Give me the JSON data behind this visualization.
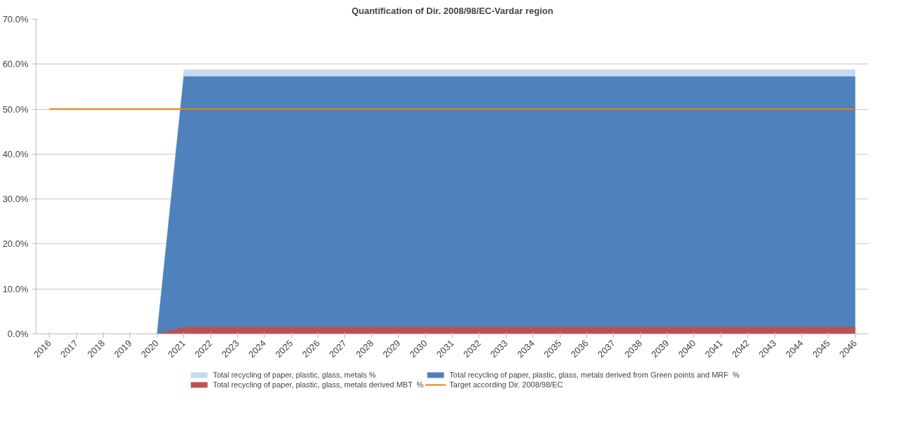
{
  "chart_data": {
    "type": "area",
    "title": "Quantification of Dir. 2008/98/EC-Vardar region",
    "categories": [
      "2016",
      "2017",
      "2018",
      "2019",
      "2020",
      "2021",
      "2022",
      "2023",
      "2024",
      "2025",
      "2026",
      "2027",
      "2028",
      "2029",
      "2030",
      "2031",
      "2032",
      "2033",
      "2034",
      "2035",
      "2036",
      "2037",
      "2038",
      "2039",
      "2040",
      "2041",
      "2042",
      "2043",
      "2044",
      "2045",
      "2046"
    ],
    "series": [
      {
        "name": "Total recycling of paper, plastic, glass, metals %",
        "color": "#c6d9f1",
        "values": [
          0,
          0,
          0,
          0,
          0,
          58.8,
          58.8,
          58.8,
          58.8,
          58.8,
          58.8,
          58.8,
          58.8,
          58.8,
          58.8,
          58.8,
          58.8,
          58.8,
          58.8,
          58.8,
          58.8,
          58.8,
          58.8,
          58.8,
          58.8,
          58.8,
          58.8,
          58.8,
          58.8,
          58.8,
          58.8
        ]
      },
      {
        "name": "Total recycling of paper, plastic, glass, metals derived from Green points and MRF  %",
        "color": "#4f81bd",
        "values": [
          0,
          0,
          0,
          0,
          0,
          57.3,
          57.3,
          57.3,
          57.3,
          57.3,
          57.3,
          57.3,
          57.3,
          57.3,
          57.3,
          57.3,
          57.3,
          57.3,
          57.3,
          57.3,
          57.3,
          57.3,
          57.3,
          57.3,
          57.3,
          57.3,
          57.3,
          57.3,
          57.3,
          57.3,
          57.3
        ]
      },
      {
        "name": "Total recycling of paper, plastic, glass, metals derived MBT  %",
        "color": "#c0504d",
        "values": [
          0,
          0,
          0,
          0,
          0,
          1.5,
          1.5,
          1.5,
          1.5,
          1.5,
          1.5,
          1.5,
          1.5,
          1.5,
          1.5,
          1.5,
          1.5,
          1.5,
          1.5,
          1.5,
          1.5,
          1.5,
          1.5,
          1.5,
          1.5,
          1.5,
          1.5,
          1.5,
          1.5,
          1.5,
          1.5
        ]
      },
      {
        "name": "Target according Dir. 2008/98/EC",
        "type": "line",
        "color": "#f07f09",
        "values": [
          50,
          50,
          50,
          50,
          50,
          50,
          50,
          50,
          50,
          50,
          50,
          50,
          50,
          50,
          50,
          50,
          50,
          50,
          50,
          50,
          50,
          50,
          50,
          50,
          50,
          50,
          50,
          50,
          50,
          50,
          50
        ]
      }
    ],
    "ylim": [
      0,
      70
    ],
    "yticks": [
      {
        "value": 0,
        "label": "0.0%"
      },
      {
        "value": 10,
        "label": "10.0%"
      },
      {
        "value": 20,
        "label": "20.0%"
      },
      {
        "value": 30,
        "label": "30.0%"
      },
      {
        "value": 40,
        "label": "40.0%"
      },
      {
        "value": 50,
        "label": "50.0%"
      },
      {
        "value": 60,
        "label": "60.0%"
      },
      {
        "value": 70,
        "label": "70.0%"
      }
    ],
    "grid": "y",
    "legend": "bottom"
  }
}
